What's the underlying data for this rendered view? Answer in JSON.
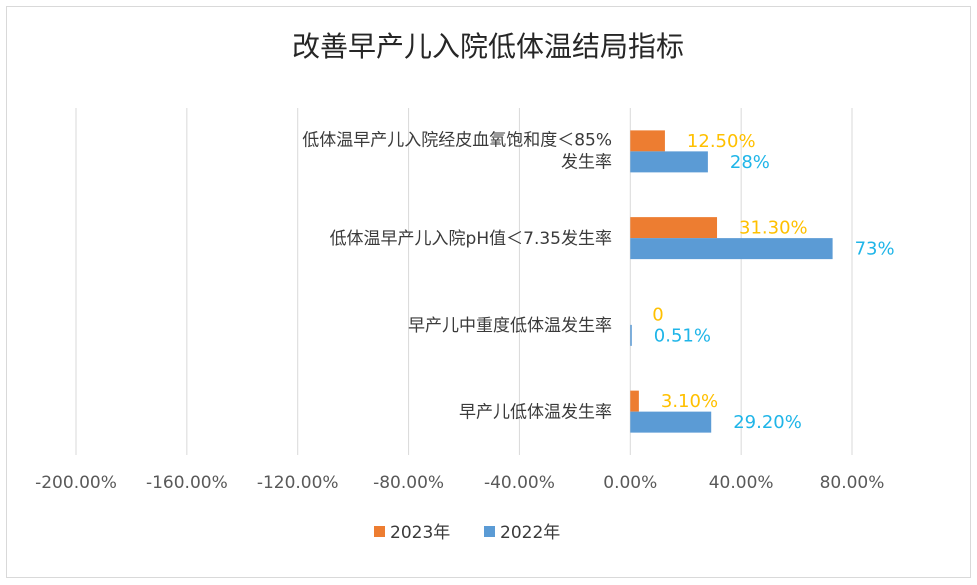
{
  "chart_data": {
    "type": "bar",
    "orientation": "horizontal",
    "title": "改善早产儿入院低体温结局指标",
    "categories": [
      [
        "低体温早产儿入院经皮血氧饱和度＜85%",
        "发生率"
      ],
      [
        "低体温早产儿入院pH值＜7.35发生率"
      ],
      [
        "早产儿中重度低体温发生率"
      ],
      [
        "早产儿低体温发生率"
      ]
    ],
    "series": [
      {
        "name": "2023年",
        "color": "#ed7d31",
        "label_color": "#ffc000",
        "values": [
          12.5,
          31.3,
          0,
          3.1
        ],
        "labels": [
          "12.50%",
          "31.30%",
          "0",
          "3.10%"
        ]
      },
      {
        "name": "2022年",
        "color": "#5b9bd5",
        "label_color": "#1fb5e8",
        "values": [
          28,
          73,
          0.51,
          29.2
        ],
        "labels": [
          "28%",
          "73%",
          "0.51%",
          "29.20%"
        ]
      }
    ],
    "xlim": [
      -200,
      80
    ],
    "xticks": [
      -200,
      -160,
      -120,
      -80,
      -40,
      0,
      40,
      80
    ],
    "xtick_labels": [
      "-200.00%",
      "-160.00%",
      "-120.00%",
      "-80.00%",
      "-40.00%",
      "0.00%",
      "40.00%",
      "80.00%"
    ],
    "grid": true,
    "legend_position": "bottom"
  }
}
